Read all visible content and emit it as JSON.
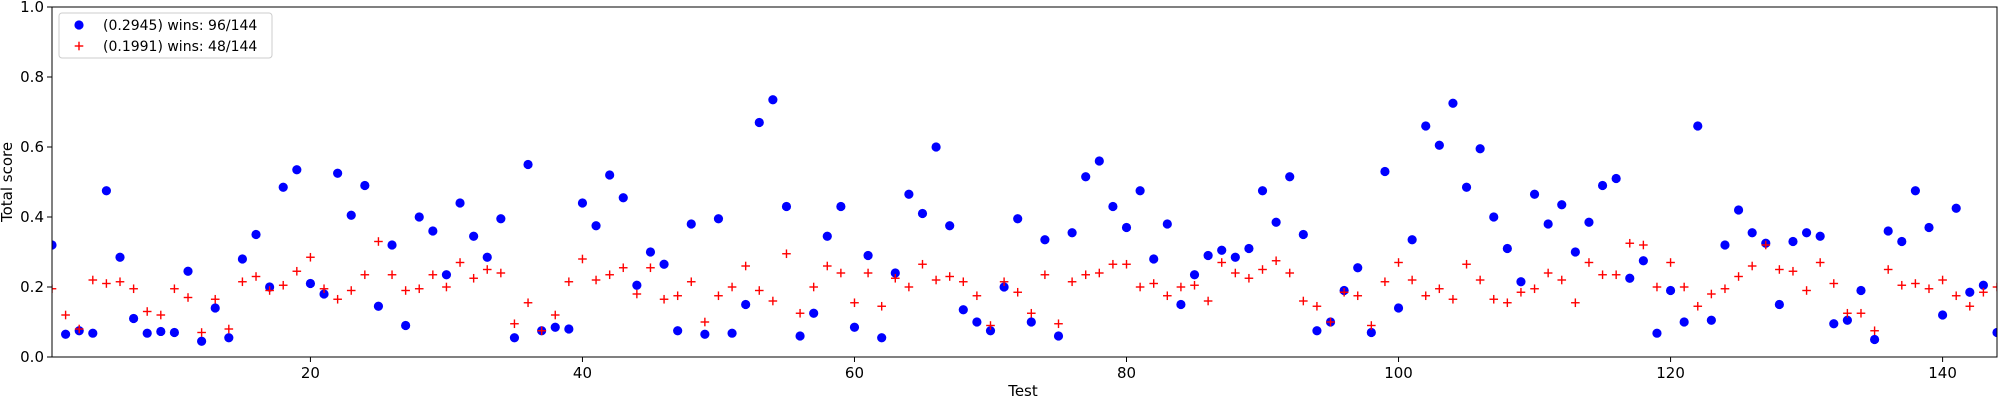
{
  "chart_data": {
    "type": "scatter",
    "xlabel": "Test",
    "ylabel": "Total score",
    "xlim": [
      1,
      144
    ],
    "ylim": [
      0.0,
      1.0
    ],
    "xticks": [
      20,
      40,
      60,
      80,
      100,
      120,
      140
    ],
    "xtick_labels": [
      "20",
      "40",
      "60",
      "80",
      "100",
      "120",
      "140"
    ],
    "yticks": [
      0.0,
      0.2,
      0.4,
      0.6,
      0.8,
      1.0
    ],
    "ytick_labels": [
      "0.0",
      "0.2",
      "0.4",
      "0.6",
      "0.8",
      "1.0"
    ],
    "grid": false,
    "legend_position": "upper-left",
    "series": [
      {
        "name": "(0.2945) wins: 96/144",
        "marker": "circle",
        "color": "#0000ff",
        "x": [
          1,
          2,
          3,
          4,
          5,
          6,
          7,
          8,
          9,
          10,
          11,
          12,
          13,
          14,
          15,
          16,
          17,
          18,
          19,
          20,
          21,
          22,
          23,
          24,
          25,
          26,
          27,
          28,
          29,
          30,
          31,
          32,
          33,
          34,
          35,
          36,
          37,
          38,
          39,
          40,
          41,
          42,
          43,
          44,
          45,
          46,
          47,
          48,
          49,
          50,
          51,
          52,
          53,
          54,
          55,
          56,
          57,
          58,
          59,
          60,
          61,
          62,
          63,
          64,
          65,
          66,
          67,
          68,
          69,
          70,
          71,
          72,
          73,
          74,
          75,
          76,
          77,
          78,
          79,
          80,
          81,
          82,
          83,
          84,
          85,
          86,
          87,
          88,
          89,
          90,
          91,
          92,
          93,
          94,
          95,
          96,
          97,
          98,
          99,
          100,
          101,
          102,
          103,
          104,
          105,
          106,
          107,
          108,
          109,
          110,
          111,
          112,
          113,
          114,
          115,
          116,
          117,
          118,
          119,
          120,
          121,
          122,
          123,
          124,
          125,
          126,
          127,
          128,
          129,
          130,
          131,
          132,
          133,
          134,
          135,
          136,
          137,
          138,
          139,
          140,
          141,
          142,
          143,
          144
        ],
        "y": [
          0.32,
          0.065,
          0.075,
          0.068,
          0.475,
          0.285,
          0.11,
          0.068,
          0.073,
          0.07,
          0.245,
          0.045,
          0.14,
          0.055,
          0.28,
          0.35,
          0.2,
          0.485,
          0.535,
          0.21,
          0.18,
          0.525,
          0.405,
          0.49,
          0.145,
          0.32,
          0.09,
          0.4,
          0.36,
          0.235,
          0.44,
          0.345,
          0.285,
          0.395,
          0.055,
          0.55,
          0.075,
          0.085,
          0.08,
          0.44,
          0.375,
          0.52,
          0.455,
          0.205,
          0.3,
          0.265,
          0.075,
          0.38,
          0.065,
          0.395,
          0.068,
          0.15,
          0.67,
          0.735,
          0.43,
          0.06,
          0.125,
          0.345,
          0.43,
          0.085,
          0.29,
          0.055,
          0.24,
          0.465,
          0.41,
          0.6,
          0.375,
          0.135,
          0.1,
          0.075,
          0.2,
          0.395,
          0.1,
          0.335,
          0.06,
          0.355,
          0.515,
          0.56,
          0.43,
          0.37,
          0.475,
          0.28,
          0.38,
          0.15,
          0.235,
          0.29,
          0.305,
          0.285,
          0.31,
          0.475,
          0.385,
          0.515,
          0.35,
          0.075,
          0.1,
          0.19,
          0.255,
          0.07,
          0.53,
          0.14,
          0.335,
          0.66,
          0.605,
          0.725,
          0.485,
          0.595,
          0.4,
          0.31,
          0.215,
          0.465,
          0.38,
          0.435,
          0.3,
          0.385,
          0.49,
          0.51,
          0.225,
          0.275,
          0.068,
          0.19,
          0.1,
          0.66,
          0.105,
          0.32,
          0.42,
          0.355,
          0.325,
          0.15,
          0.33,
          0.355,
          0.345,
          0.095,
          0.105,
          0.19,
          0.05,
          0.36,
          0.33,
          0.475,
          0.37,
          0.12,
          0.425,
          0.185,
          0.205,
          0.07
        ]
      },
      {
        "name": "(0.1991) wins: 48/144",
        "marker": "plus",
        "color": "#ff0000",
        "x": [
          1,
          2,
          3,
          4,
          5,
          6,
          7,
          8,
          9,
          10,
          11,
          12,
          13,
          14,
          15,
          16,
          17,
          18,
          19,
          20,
          21,
          22,
          23,
          24,
          25,
          26,
          27,
          28,
          29,
          30,
          31,
          32,
          33,
          34,
          35,
          36,
          37,
          38,
          39,
          40,
          41,
          42,
          43,
          44,
          45,
          46,
          47,
          48,
          49,
          50,
          51,
          52,
          53,
          54,
          55,
          56,
          57,
          58,
          59,
          60,
          61,
          62,
          63,
          64,
          65,
          66,
          67,
          68,
          69,
          70,
          71,
          72,
          73,
          74,
          75,
          76,
          77,
          78,
          79,
          80,
          81,
          82,
          83,
          84,
          85,
          86,
          87,
          88,
          89,
          90,
          91,
          92,
          93,
          94,
          95,
          96,
          97,
          98,
          99,
          100,
          101,
          102,
          103,
          104,
          105,
          106,
          107,
          108,
          109,
          110,
          111,
          112,
          113,
          114,
          115,
          116,
          117,
          118,
          119,
          120,
          121,
          122,
          123,
          124,
          125,
          126,
          127,
          128,
          129,
          130,
          131,
          132,
          133,
          134,
          135,
          136,
          137,
          138,
          139,
          140,
          141,
          142,
          143,
          144
        ],
        "y": [
          0.195,
          0.12,
          0.08,
          0.22,
          0.21,
          0.215,
          0.195,
          0.13,
          0.12,
          0.195,
          0.17,
          0.07,
          0.165,
          0.08,
          0.215,
          0.23,
          0.19,
          0.205,
          0.245,
          0.285,
          0.195,
          0.165,
          0.19,
          0.235,
          0.33,
          0.235,
          0.19,
          0.195,
          0.235,
          0.2,
          0.27,
          0.225,
          0.25,
          0.24,
          0.095,
          0.155,
          0.075,
          0.12,
          0.215,
          0.28,
          0.22,
          0.235,
          0.255,
          0.18,
          0.255,
          0.165,
          0.175,
          0.215,
          0.1,
          0.175,
          0.2,
          0.26,
          0.19,
          0.16,
          0.295,
          0.125,
          0.2,
          0.26,
          0.24,
          0.155,
          0.24,
          0.145,
          0.225,
          0.2,
          0.265,
          0.22,
          0.23,
          0.215,
          0.175,
          0.09,
          0.215,
          0.185,
          0.125,
          0.235,
          0.095,
          0.215,
          0.235,
          0.24,
          0.265,
          0.265,
          0.2,
          0.21,
          0.175,
          0.2,
          0.205,
          0.16,
          0.27,
          0.24,
          0.225,
          0.25,
          0.275,
          0.24,
          0.16,
          0.145,
          0.1,
          0.185,
          0.175,
          0.09,
          0.215,
          0.27,
          0.22,
          0.175,
          0.195,
          0.165,
          0.265,
          0.22,
          0.165,
          0.155,
          0.185,
          0.195,
          0.24,
          0.22,
          0.155,
          0.27,
          0.235,
          0.235,
          0.325,
          0.32,
          0.2,
          0.27,
          0.2,
          0.145,
          0.18,
          0.195,
          0.23,
          0.26,
          0.32,
          0.25,
          0.245,
          0.19,
          0.27,
          0.21,
          0.125,
          0.125,
          0.075,
          0.25,
          0.205,
          0.21,
          0.195,
          0.22,
          0.175,
          0.145,
          0.185,
          0.2
        ]
      }
    ]
  }
}
